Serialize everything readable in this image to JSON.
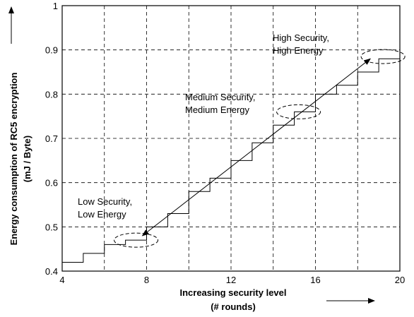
{
  "chart_data": {
    "type": "line",
    "xlabel": "Increasing security level",
    "xlabel_sub": "(# rounds)",
    "ylabel": "Energy consumption of RC5 encryption",
    "ylabel_sub": "(mJ / Byte)",
    "xlim": [
      4,
      20
    ],
    "ylim": [
      0.4,
      1.0
    ],
    "xticks": [
      4,
      8,
      12,
      16,
      20
    ],
    "xtick_labels": [
      "4",
      "8",
      "12",
      "16",
      "20"
    ],
    "yticks": [
      0.4,
      0.5,
      0.6,
      0.7,
      0.8,
      0.9,
      1.0
    ],
    "ytick_labels": [
      "0.4",
      "0.5",
      "0.6",
      "0.7",
      "0.8",
      "0.9",
      "1"
    ],
    "grid": true,
    "series": [
      {
        "style": "step",
        "x": [
          4,
          5,
          6,
          7,
          8,
          9,
          10,
          11,
          12,
          13,
          14,
          15,
          16,
          17,
          18,
          19,
          20
        ],
        "y": [
          0.42,
          0.44,
          0.46,
          0.47,
          0.5,
          0.53,
          0.58,
          0.61,
          0.65,
          0.69,
          0.73,
          0.76,
          0.8,
          0.82,
          0.85,
          0.88,
          0.9
        ]
      },
      {
        "style": "trend-line",
        "x": [
          7.8,
          18.6
        ],
        "y": [
          0.48,
          0.88
        ]
      }
    ],
    "annotations": [
      {
        "lines": [
          "Low Security,",
          "Low Energy"
        ],
        "x": 7.5,
        "y": 0.47
      },
      {
        "lines": [
          "Medium Security,",
          "Medium Energy"
        ],
        "x": 15.2,
        "y": 0.76
      },
      {
        "lines": [
          "High Security,",
          "High Energy"
        ],
        "x": 19.2,
        "y": 0.885
      }
    ]
  }
}
